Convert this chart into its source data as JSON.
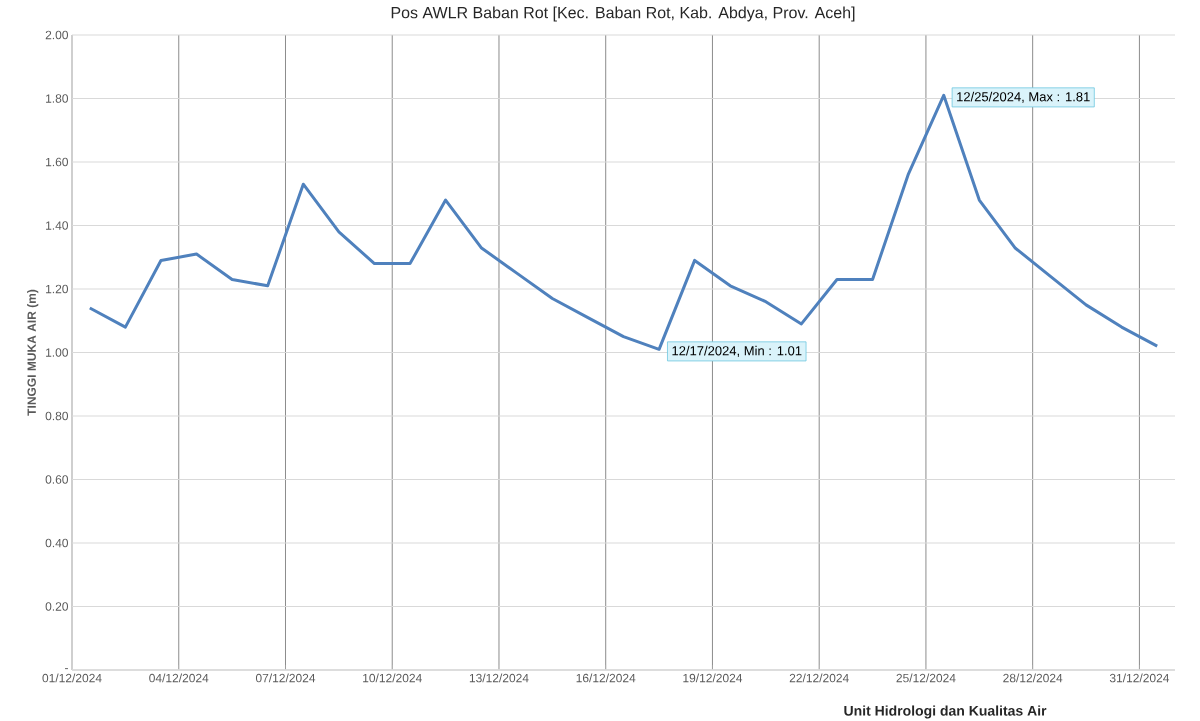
{
  "chart_data": {
    "type": "line",
    "title": "Pos AWLR Baban Rot [Kec. Baban Rot, Kab. Abdya, Prov. Aceh]",
    "ylabel": "TINGGI MUKA AIR (m)",
    "x": [
      "2024-12-01T12:00",
      "2024-12-02T12:00",
      "2024-12-03T12:00",
      "2024-12-04T12:00",
      "2024-12-05T12:00",
      "2024-12-06T12:00",
      "2024-12-07T12:00",
      "2024-12-08T12:00",
      "2024-12-09T12:00",
      "2024-12-10T12:00",
      "2024-12-11T12:00",
      "2024-12-12T12:00",
      "2024-12-13T12:00",
      "2024-12-14T12:00",
      "2024-12-15T12:00",
      "2024-12-16T12:00",
      "2024-12-17T12:00",
      "2024-12-18T12:00",
      "2024-12-19T12:00",
      "2024-12-20T12:00",
      "2024-12-21T12:00",
      "2024-12-22T12:00",
      "2024-12-23T12:00",
      "2024-12-24T12:00",
      "2024-12-25T12:00",
      "2024-12-26T12:00",
      "2024-12-27T12:00",
      "2024-12-28T12:00",
      "2024-12-29T12:00",
      "2024-12-30T12:00",
      "2024-12-31T12:00"
    ],
    "series": [
      {
        "color": "#4f81bd",
        "values": [
          1.14,
          1.08,
          1.29,
          1.31,
          1.23,
          1.21,
          1.53,
          1.38,
          1.28,
          1.28,
          1.48,
          1.33,
          1.25,
          1.17,
          1.11,
          1.05,
          1.01,
          1.29,
          1.21,
          1.16,
          1.09,
          1.23,
          1.23,
          1.56,
          1.81,
          1.48,
          1.33,
          1.24,
          1.15,
          1.08,
          1.02
        ]
      }
    ],
    "xlim": [
      "2024-12-01",
      "2025-01-01"
    ],
    "xticks": [
      {
        "value": "2024-12-01",
        "label": "01/12/2024"
      },
      {
        "value": "2024-12-04",
        "label": "04/12/2024"
      },
      {
        "value": "2024-12-07",
        "label": "07/12/2024"
      },
      {
        "value": "2024-12-10",
        "label": "10/12/2024"
      },
      {
        "value": "2024-12-13",
        "label": "13/12/2024"
      },
      {
        "value": "2024-12-16",
        "label": "16/12/2024"
      },
      {
        "value": "2024-12-19",
        "label": "19/12/2024"
      },
      {
        "value": "2024-12-22",
        "label": "22/12/2024"
      },
      {
        "value": "2024-12-25",
        "label": "25/12/2024"
      },
      {
        "value": "2024-12-28",
        "label": "28/12/2024"
      },
      {
        "value": "2024-12-31",
        "label": "31/12/2024"
      }
    ],
    "ylim": [
      0,
      2
    ],
    "yticks": [
      {
        "value": 0,
        "label": "-"
      },
      {
        "value": 0.2,
        "label": "0.20"
      },
      {
        "value": 0.4,
        "label": "0.40"
      },
      {
        "value": 0.6,
        "label": "0.60"
      },
      {
        "value": 0.8,
        "label": "0.80"
      },
      {
        "value": 1.0,
        "label": "1.00"
      },
      {
        "value": 1.2,
        "label": "1.20"
      },
      {
        "value": 1.4,
        "label": "1.40"
      },
      {
        "value": 1.6,
        "label": "1.60"
      },
      {
        "value": 1.8,
        "label": "1.80"
      },
      {
        "value": 2.0,
        "label": "2.00"
      }
    ],
    "grid": true,
    "marker": "none",
    "line_style": "solid",
    "annotations": [
      {
        "text": "12/17/2024, Min : 1.01",
        "x": "2024-12-17T12:00",
        "y": 1.01
      },
      {
        "text": "12/25/2024, Max : 1.81",
        "x": "2024-12-25T12:00",
        "y": 1.81
      },
      "Unit Hidrologi dan Kualitas Air"
    ]
  }
}
